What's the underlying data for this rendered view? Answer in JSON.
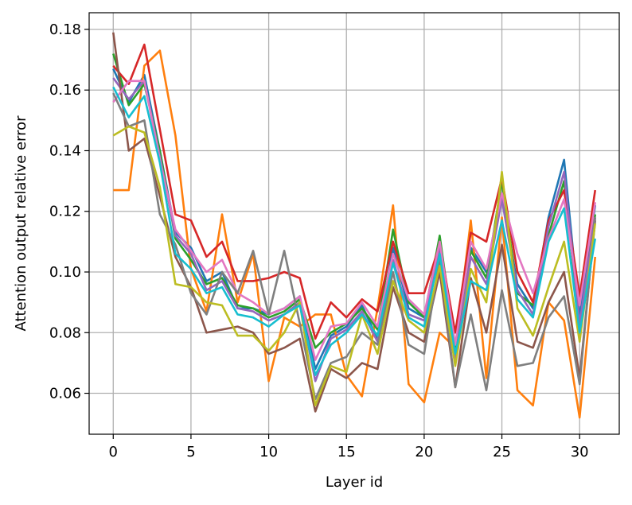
{
  "chart_data": {
    "type": "line",
    "title": "",
    "xlabel": "Layer id",
    "ylabel": "Attention output relative error",
    "xlim": [
      -1.55,
      32.55
    ],
    "ylim": [
      0.0465,
      0.1855
    ],
    "xticks": [
      0,
      5,
      10,
      15,
      20,
      25,
      30
    ],
    "yticks": [
      0.06,
      0.08,
      0.1,
      0.12,
      0.14,
      0.16,
      0.18
    ],
    "xtick_labels": [
      "0",
      "5",
      "10",
      "15",
      "20",
      "25",
      "30"
    ],
    "ytick_labels": [
      "0.06",
      "0.08",
      "0.10",
      "0.12",
      "0.14",
      "0.16",
      "0.18"
    ],
    "grid": true,
    "legend": "none",
    "x": [
      0,
      1,
      2,
      3,
      4,
      5,
      6,
      7,
      8,
      9,
      10,
      11,
      12,
      13,
      14,
      15,
      16,
      17,
      18,
      19,
      20,
      21,
      22,
      23,
      24,
      25,
      26,
      27,
      28,
      29,
      30,
      31
    ],
    "series": [
      {
        "color": "#1f77b4",
        "values": [
          0.167,
          0.156,
          0.165,
          0.14,
          0.113,
          0.108,
          0.097,
          0.1,
          0.088,
          0.088,
          0.086,
          0.088,
          0.092,
          0.068,
          0.079,
          0.082,
          0.089,
          0.078,
          0.108,
          0.088,
          0.085,
          0.111,
          0.072,
          0.108,
          0.1,
          0.125,
          0.096,
          0.088,
          0.118,
          0.137,
          0.085,
          0.122
        ]
      },
      {
        "color": "#ff7f0e",
        "values": [
          0.127,
          0.127,
          0.168,
          0.173,
          0.145,
          0.101,
          0.087,
          0.119,
          0.09,
          0.106,
          0.064,
          0.085,
          0.082,
          0.086,
          0.086,
          0.066,
          0.059,
          0.088,
          0.122,
          0.063,
          0.057,
          0.08,
          0.075,
          0.117,
          0.065,
          0.118,
          0.061,
          0.056,
          0.09,
          0.084,
          0.052,
          0.105
        ]
      },
      {
        "color": "#2ca02c",
        "values": [
          0.172,
          0.155,
          0.162,
          0.14,
          0.111,
          0.104,
          0.096,
          0.098,
          0.089,
          0.088,
          0.085,
          0.087,
          0.091,
          0.075,
          0.08,
          0.083,
          0.088,
          0.081,
          0.114,
          0.09,
          0.085,
          0.112,
          0.075,
          0.107,
          0.098,
          0.13,
          0.093,
          0.089,
          0.112,
          0.13,
          0.082,
          0.119
        ]
      },
      {
        "color": "#d62728",
        "values": [
          0.168,
          0.162,
          0.175,
          0.147,
          0.119,
          0.117,
          0.105,
          0.11,
          0.097,
          0.097,
          0.098,
          0.1,
          0.098,
          0.078,
          0.09,
          0.085,
          0.091,
          0.087,
          0.11,
          0.093,
          0.093,
          0.109,
          0.08,
          0.113,
          0.11,
          0.131,
          0.1,
          0.09,
          0.117,
          0.127,
          0.092,
          0.127
        ]
      },
      {
        "color": "#9467bd",
        "values": [
          0.164,
          0.157,
          0.163,
          0.138,
          0.112,
          0.106,
          0.094,
          0.097,
          0.088,
          0.087,
          0.084,
          0.086,
          0.09,
          0.064,
          0.078,
          0.081,
          0.087,
          0.077,
          0.104,
          0.086,
          0.084,
          0.108,
          0.071,
          0.105,
          0.096,
          0.124,
          0.094,
          0.086,
          0.115,
          0.133,
          0.083,
          0.118
        ]
      },
      {
        "color": "#8c564b",
        "values": [
          0.179,
          0.14,
          0.144,
          0.125,
          0.105,
          0.095,
          0.08,
          0.081,
          0.082,
          0.08,
          0.073,
          0.075,
          0.078,
          0.054,
          0.068,
          0.065,
          0.07,
          0.068,
          0.095,
          0.08,
          0.077,
          0.1,
          0.062,
          0.098,
          0.08,
          0.109,
          0.077,
          0.075,
          0.09,
          0.1,
          0.065,
          0.117
        ]
      },
      {
        "color": "#e377c2",
        "values": [
          0.156,
          0.163,
          0.163,
          0.137,
          0.114,
          0.107,
          0.1,
          0.104,
          0.093,
          0.09,
          0.086,
          0.088,
          0.092,
          0.071,
          0.082,
          0.083,
          0.09,
          0.082,
          0.106,
          0.091,
          0.086,
          0.11,
          0.076,
          0.11,
          0.101,
          0.126,
          0.106,
          0.093,
          0.111,
          0.124,
          0.089,
          0.123
        ]
      },
      {
        "color": "#7f7f7f",
        "values": [
          0.159,
          0.148,
          0.15,
          0.119,
          0.109,
          0.093,
          0.086,
          0.1,
          0.093,
          0.107,
          0.086,
          0.107,
          0.083,
          0.058,
          0.07,
          0.072,
          0.08,
          0.076,
          0.1,
          0.076,
          0.073,
          0.104,
          0.062,
          0.086,
          0.061,
          0.094,
          0.069,
          0.07,
          0.085,
          0.092,
          0.063,
          0.118
        ]
      },
      {
        "color": "#bcbd22",
        "values": [
          0.145,
          0.148,
          0.146,
          0.128,
          0.096,
          0.095,
          0.09,
          0.089,
          0.079,
          0.079,
          0.074,
          0.08,
          0.09,
          0.056,
          0.069,
          0.067,
          0.086,
          0.073,
          0.097,
          0.084,
          0.08,
          0.102,
          0.069,
          0.101,
          0.09,
          0.133,
          0.088,
          0.079,
          0.095,
          0.11,
          0.077,
          0.116
        ]
      },
      {
        "color": "#17becf",
        "values": [
          0.161,
          0.151,
          0.158,
          0.136,
          0.106,
          0.101,
          0.093,
          0.095,
          0.086,
          0.085,
          0.082,
          0.086,
          0.089,
          0.066,
          0.076,
          0.08,
          0.086,
          0.079,
          0.103,
          0.085,
          0.082,
          0.106,
          0.073,
          0.097,
          0.094,
          0.117,
          0.091,
          0.085,
          0.11,
          0.121,
          0.08,
          0.111
        ]
      }
    ]
  }
}
